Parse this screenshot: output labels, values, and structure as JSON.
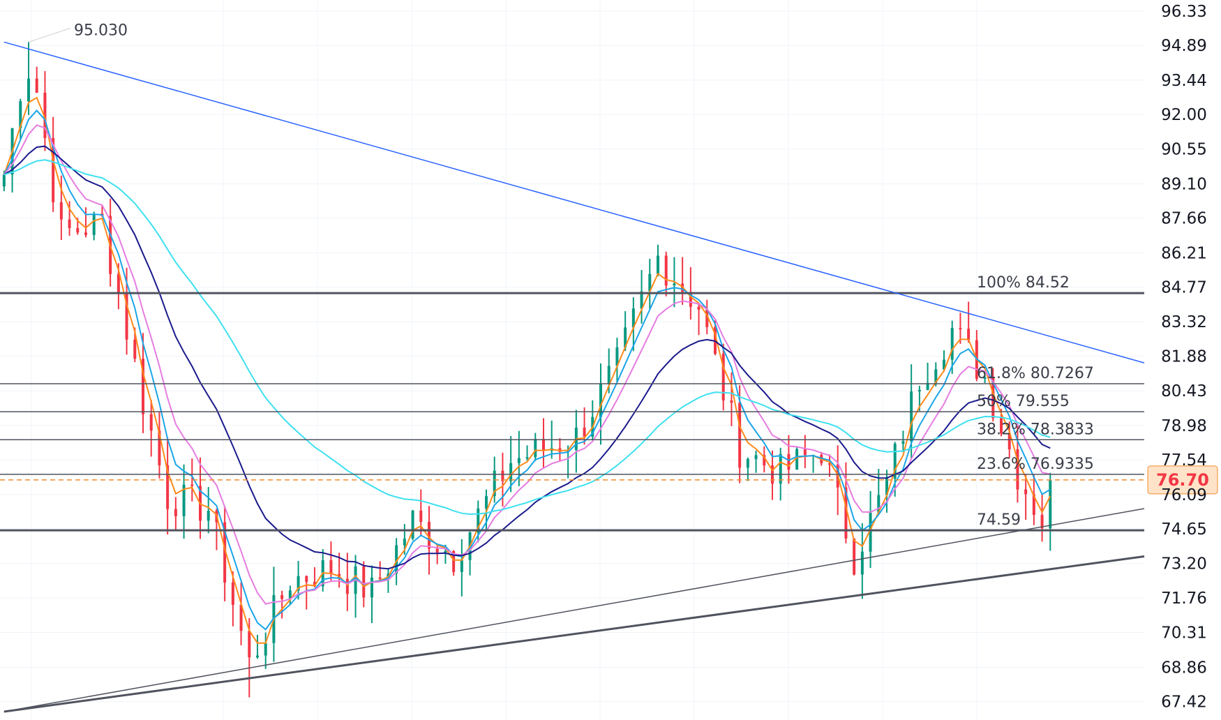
{
  "chart_data": {
    "type": "candlestick",
    "title": "",
    "xlabel": "",
    "ylabel": "",
    "ylim": [
      67.0,
      96.5
    ],
    "grid": true,
    "colors": {
      "up": "#089981",
      "down": "#f23645",
      "trendline": "#2962ff",
      "level": "#50535e",
      "ma_fast": "#ff8a1a",
      "ma_blue": "#1aa5e8",
      "ma_pink": "#e57ce0",
      "ma_navy": "#1a1a8c",
      "ma_cyan": "#3ee0f0",
      "current_price": "#f08c2a",
      "current_price_bg": "#ffe3c8",
      "current_price_text": "#f23645"
    },
    "y_ticks": [
      "96.33",
      "94.89",
      "93.44",
      "92.00",
      "90.55",
      "89.10",
      "87.66",
      "86.21",
      "84.77",
      "83.32",
      "81.88",
      "80.43",
      "78.98",
      "77.54",
      "76.09",
      "74.65",
      "73.20",
      "71.76",
      "70.31",
      "68.86",
      "67.42"
    ],
    "current_price": "76.70",
    "peak_label": "95.030",
    "fib_levels": [
      {
        "label": "100% 84.52",
        "price": 84.52
      },
      {
        "label": "61.8% 80.7267",
        "price": 80.7267
      },
      {
        "label": "50% 79.555",
        "price": 79.555
      },
      {
        "label": "38.2% 78.3833",
        "price": 78.3833
      },
      {
        "label": "23.6% 76.9335",
        "price": 76.9335
      },
      {
        "label": "74.59",
        "price": 74.59
      }
    ],
    "trendlines": [
      {
        "name": "upper",
        "points": [
          [
            0,
            95.03
          ],
          [
            140,
            81.6
          ]
        ]
      },
      {
        "name": "lower_thin",
        "points": [
          [
            0,
            67.0
          ],
          [
            140,
            75.5
          ]
        ]
      },
      {
        "name": "lower_thick",
        "points": [
          [
            0,
            67.0
          ],
          [
            140,
            73.5
          ]
        ]
      }
    ],
    "anchors": [
      [
        0,
        89.5
      ],
      [
        3,
        95.0
      ],
      [
        7,
        87.0
      ],
      [
        12,
        87.5
      ],
      [
        17,
        80.0
      ],
      [
        20,
        76.0
      ],
      [
        25,
        75.5
      ],
      [
        30,
        69.0
      ],
      [
        35,
        72.5
      ],
      [
        40,
        73.0
      ],
      [
        45,
        72.0
      ],
      [
        50,
        75.0
      ],
      [
        55,
        73.5
      ],
      [
        62,
        77.5
      ],
      [
        70,
        78.5
      ],
      [
        75,
        81.5
      ],
      [
        80,
        86.0
      ],
      [
        85,
        84.0
      ],
      [
        90,
        78.0
      ],
      [
        95,
        77.0
      ],
      [
        100,
        78.0
      ],
      [
        104,
        73.5
      ],
      [
        108,
        76.5
      ],
      [
        112,
        81.0
      ],
      [
        116,
        83.0
      ],
      [
        120,
        81.0
      ],
      [
        124,
        77.0
      ],
      [
        127,
        75.0
      ],
      [
        128,
        76.7
      ]
    ]
  }
}
